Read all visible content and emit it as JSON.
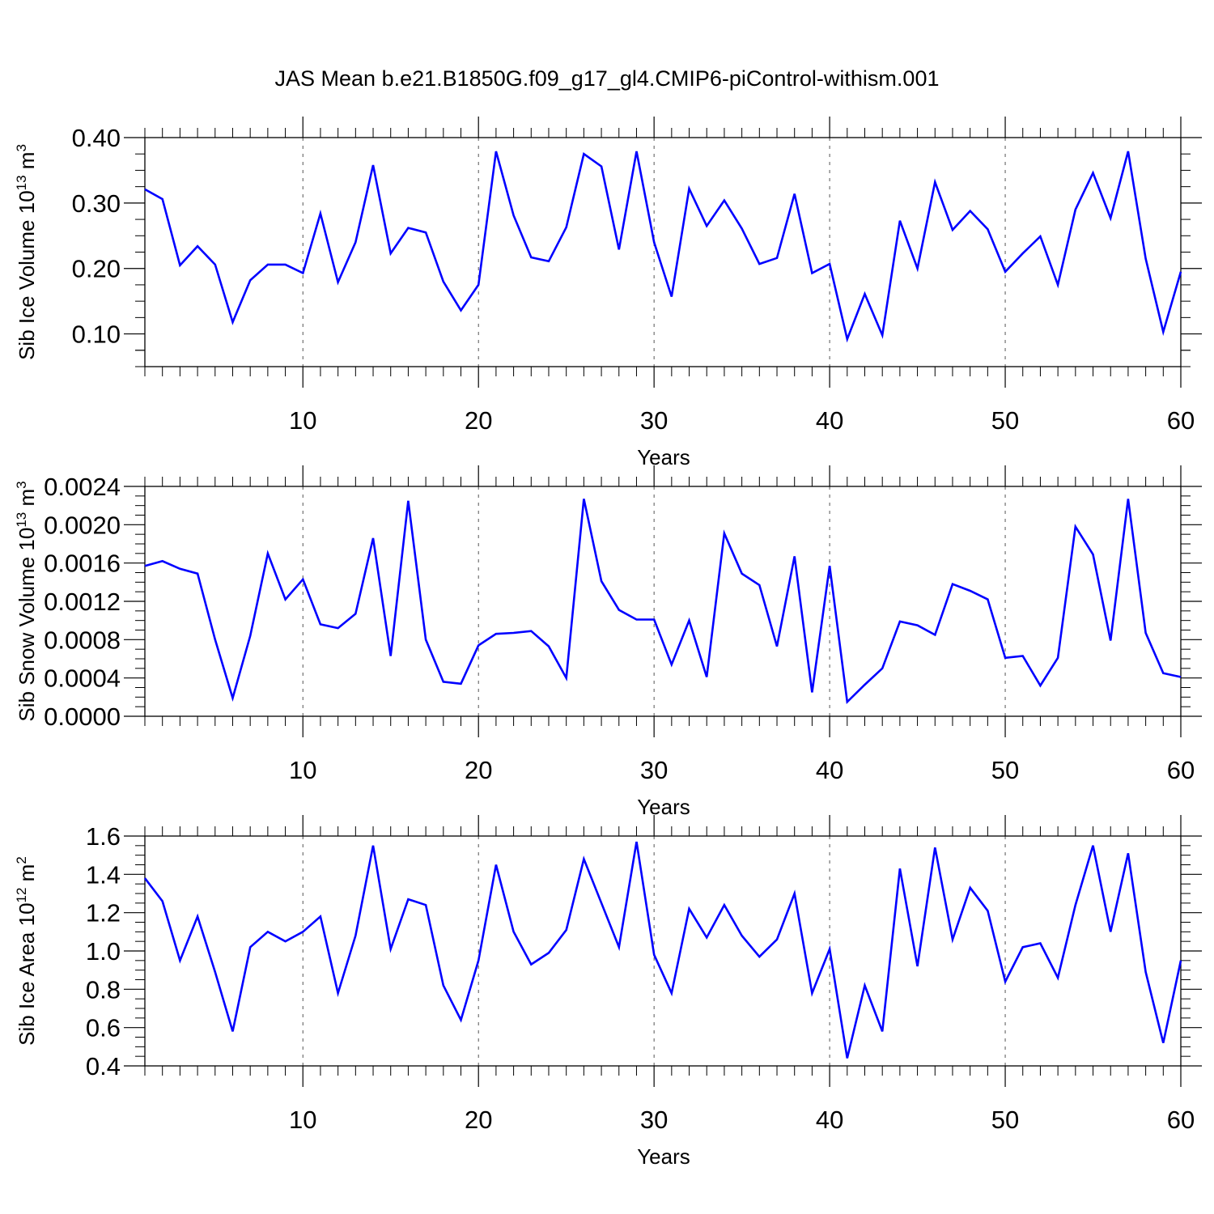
{
  "title": "JAS Mean b.e21.B1850G.f09_g17_gl4.CMIP6-piControl-withism.001",
  "line_color": "#0000ff",
  "chart_data": [
    {
      "type": "line",
      "title": "JAS Mean b.e21.B1850G.f09_g17_gl4.CMIP6-piControl-withism.001",
      "xlabel": "Years",
      "ylabel": {
        "pre": "Sib Ice Volume 10",
        "sup": "13",
        "mid": " m",
        "sup2": "3"
      },
      "xlim": [
        1,
        60
      ],
      "ylim": [
        0.05,
        0.4
      ],
      "xticks": [
        10,
        20,
        30,
        40,
        50,
        60
      ],
      "xtick_labels": [
        "10",
        "20",
        "30",
        "40",
        "50",
        "60"
      ],
      "yticks": [
        0.1,
        0.2,
        0.3,
        0.4
      ],
      "ytick_labels": [
        "0.10",
        "0.20",
        "0.30",
        "0.40"
      ],
      "x": [
        1,
        2,
        3,
        4,
        5,
        6,
        7,
        8,
        9,
        10,
        11,
        12,
        13,
        14,
        15,
        16,
        17,
        18,
        19,
        20,
        21,
        22,
        23,
        24,
        25,
        26,
        27,
        28,
        29,
        30,
        31,
        32,
        33,
        34,
        35,
        36,
        37,
        38,
        39,
        40,
        41,
        42,
        43,
        44,
        45,
        46,
        47,
        48,
        49,
        50,
        51,
        52,
        53,
        54,
        55,
        56,
        57,
        58,
        59,
        60
      ],
      "values": [
        0.321,
        0.306,
        0.205,
        0.234,
        0.206,
        0.118,
        0.182,
        0.206,
        0.206,
        0.193,
        0.284,
        0.179,
        0.24,
        0.358,
        0.223,
        0.262,
        0.255,
        0.18,
        0.136,
        0.175,
        0.379,
        0.281,
        0.217,
        0.211,
        0.263,
        0.375,
        0.356,
        0.229,
        0.379,
        0.24,
        0.157,
        0.322,
        0.265,
        0.304,
        0.261,
        0.207,
        0.216,
        0.314,
        0.193,
        0.207,
        0.092,
        0.161,
        0.098,
        0.273,
        0.2,
        0.332,
        0.259,
        0.288,
        0.26,
        0.195,
        0.223,
        0.249,
        0.175,
        0.29,
        0.346,
        0.277,
        0.379,
        0.215,
        0.103,
        0.195
      ]
    },
    {
      "type": "line",
      "xlabel": "Years",
      "ylabel": {
        "pre": "Sib Snow Volume 10",
        "sup": "13",
        "mid": " m",
        "sup2": "3"
      },
      "xlim": [
        1,
        60
      ],
      "ylim": [
        0.0,
        0.0024
      ],
      "xticks": [
        10,
        20,
        30,
        40,
        50,
        60
      ],
      "xtick_labels": [
        "10",
        "20",
        "30",
        "40",
        "50",
        "60"
      ],
      "yticks": [
        0.0,
        0.0004,
        0.0008,
        0.0012,
        0.0016,
        0.002,
        0.0024
      ],
      "ytick_labels": [
        "0.0000",
        "0.0004",
        "0.0008",
        "0.0012",
        "0.0016",
        "0.0020",
        "0.0024"
      ],
      "x": [
        1,
        2,
        3,
        4,
        5,
        6,
        7,
        8,
        9,
        10,
        11,
        12,
        13,
        14,
        15,
        16,
        17,
        18,
        19,
        20,
        21,
        22,
        23,
        24,
        25,
        26,
        27,
        28,
        29,
        30,
        31,
        32,
        33,
        34,
        35,
        36,
        37,
        38,
        39,
        40,
        41,
        42,
        43,
        44,
        45,
        46,
        47,
        48,
        49,
        50,
        51,
        52,
        53,
        54,
        55,
        56,
        57,
        58,
        59,
        60
      ],
      "values": [
        0.00157,
        0.00162,
        0.00154,
        0.00149,
        0.0008,
        0.00019,
        0.00084,
        0.0017,
        0.00122,
        0.00143,
        0.00096,
        0.00092,
        0.00107,
        0.00186,
        0.00063,
        0.00225,
        0.0008,
        0.00036,
        0.00034,
        0.00074,
        0.00086,
        0.00087,
        0.00089,
        0.00073,
        0.0004,
        0.00227,
        0.00141,
        0.00111,
        0.00101,
        0.00101,
        0.00054,
        0.001,
        0.00041,
        0.00191,
        0.00149,
        0.00137,
        0.00073,
        0.00167,
        0.00025,
        0.00157,
        0.00015,
        0.00033,
        0.0005,
        0.00099,
        0.00095,
        0.00085,
        0.00138,
        0.00131,
        0.00122,
        0.00061,
        0.00063,
        0.00032,
        0.00061,
        0.00198,
        0.00169,
        0.00079,
        0.00227,
        0.00087,
        0.00045,
        0.00041
      ]
    },
    {
      "type": "line",
      "xlabel": "Years",
      "ylabel": {
        "pre": "Sib Ice Area 10",
        "sup": "12",
        "mid": " m",
        "sup2": "2"
      },
      "xlim": [
        1,
        60
      ],
      "ylim": [
        0.4,
        1.6
      ],
      "xticks": [
        10,
        20,
        30,
        40,
        50,
        60
      ],
      "xtick_labels": [
        "10",
        "20",
        "30",
        "40",
        "50",
        "60"
      ],
      "yticks": [
        0.4,
        0.6,
        0.8,
        1.0,
        1.2,
        1.4,
        1.6
      ],
      "ytick_labels": [
        "0.4",
        "0.6",
        "0.8",
        "1.0",
        "1.2",
        "1.4",
        "1.6"
      ],
      "x": [
        1,
        2,
        3,
        4,
        5,
        6,
        7,
        8,
        9,
        10,
        11,
        12,
        13,
        14,
        15,
        16,
        17,
        18,
        19,
        20,
        21,
        22,
        23,
        24,
        25,
        26,
        27,
        28,
        29,
        30,
        31,
        32,
        33,
        34,
        35,
        36,
        37,
        38,
        39,
        40,
        41,
        42,
        43,
        44,
        45,
        46,
        47,
        48,
        49,
        50,
        51,
        52,
        53,
        54,
        55,
        56,
        57,
        58,
        59,
        60
      ],
      "values": [
        1.38,
        1.26,
        0.95,
        1.18,
        0.89,
        0.58,
        1.02,
        1.1,
        1.05,
        1.1,
        1.18,
        0.78,
        1.08,
        1.55,
        1.01,
        1.27,
        1.24,
        0.82,
        0.64,
        0.95,
        1.45,
        1.1,
        0.93,
        0.99,
        1.11,
        1.48,
        1.25,
        1.02,
        1.57,
        0.98,
        0.78,
        1.22,
        1.07,
        1.24,
        1.08,
        0.97,
        1.06,
        1.3,
        0.78,
        1.01,
        0.44,
        0.82,
        0.58,
        1.43,
        0.92,
        1.54,
        1.06,
        1.33,
        1.21,
        0.84,
        1.02,
        1.04,
        0.86,
        1.24,
        1.55,
        1.1,
        1.51,
        0.89,
        0.52,
        0.95
      ]
    }
  ]
}
